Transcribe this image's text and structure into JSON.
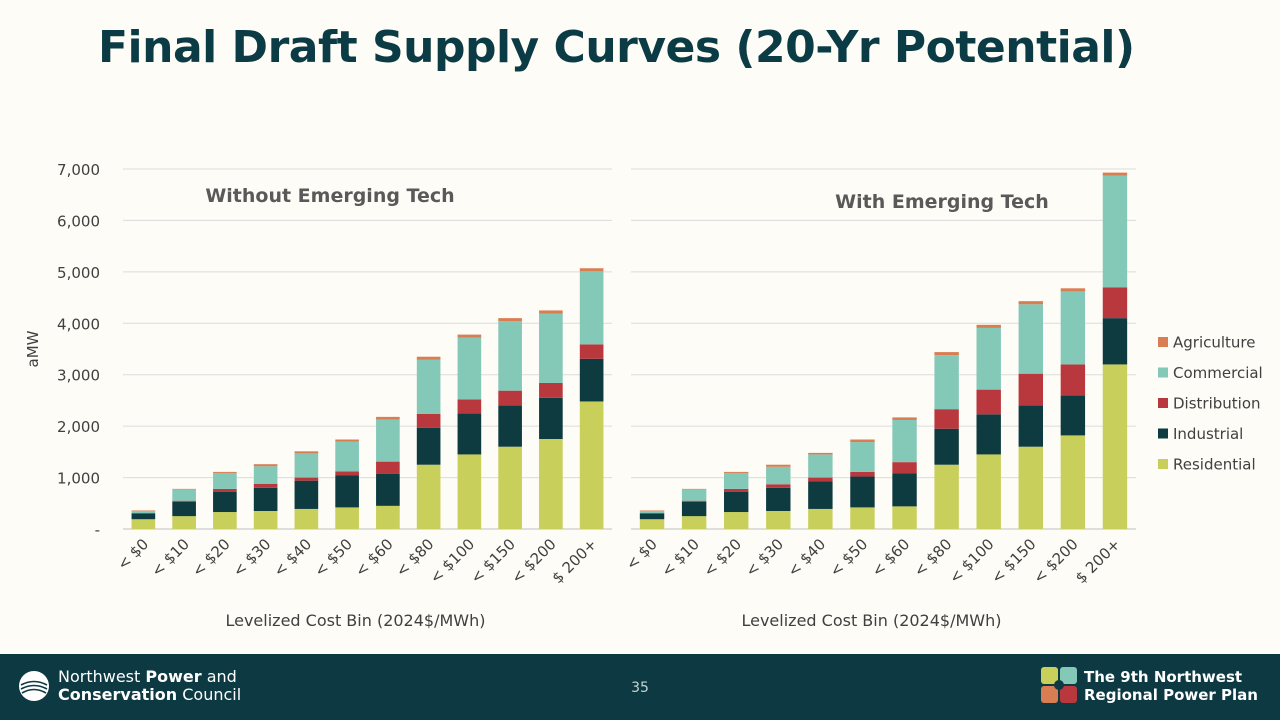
{
  "slide": {
    "title": "Final Draft Supply Curves (20-Yr Potential)",
    "page_number": "35",
    "org_name_line1_normal": "Northwest ",
    "org_name_line1_bold": "Power",
    "org_name_line1_end": " and",
    "org_name_line2_bold": "Conservation",
    "org_name_line2_end": " Council",
    "plan_name_line1": "The 9th Northwest",
    "plan_name_line2": "Regional Power Plan"
  },
  "colors": {
    "Residential": "#c8cf5a",
    "Industrial": "#0e3b40",
    "Distribution": "#b9383d",
    "Commercial": "#84c8b8",
    "Agriculture": "#d97d52",
    "title": "#0b3b44",
    "footer": "#0d3a42"
  },
  "chart_data": [
    {
      "type": "bar",
      "stacked": true,
      "title": "Without Emerging Tech",
      "ylabel": "aMW",
      "xlabel": "Levelized Cost Bin (2024$/MWh)",
      "ylim": [
        0,
        7000
      ],
      "yticks": [
        0,
        1000,
        2000,
        3000,
        4000,
        5000,
        6000,
        7000
      ],
      "ytick_labels": [
        "-",
        "1,000",
        "2,000",
        "3,000",
        "4,000",
        "5,000",
        "6,000",
        "7,000"
      ],
      "grid": true,
      "categories": [
        "< $0",
        "< $10",
        "< $20",
        "< $30",
        "< $40",
        "< $50",
        "< $60",
        "< $80",
        "< $100",
        "< $150",
        "< $200",
        "$ 200+"
      ],
      "series": [
        {
          "name": "Residential",
          "values": [
            190,
            250,
            330,
            350,
            390,
            420,
            450,
            1250,
            1450,
            1600,
            1750,
            2480
          ]
        },
        {
          "name": "Industrial",
          "values": [
            110,
            280,
            390,
            450,
            550,
            620,
            620,
            720,
            800,
            800,
            800,
            830
          ]
        },
        {
          "name": "Distribution",
          "values": [
            10,
            20,
            60,
            80,
            60,
            80,
            240,
            270,
            270,
            290,
            290,
            280
          ]
        },
        {
          "name": "Commercial",
          "values": [
            40,
            220,
            310,
            340,
            470,
            580,
            820,
            1050,
            1200,
            1350,
            1350,
            1420
          ]
        },
        {
          "name": "Agriculture",
          "values": [
            10,
            10,
            20,
            40,
            40,
            40,
            50,
            60,
            60,
            60,
            60,
            60
          ]
        }
      ]
    },
    {
      "type": "bar",
      "stacked": true,
      "title": "With Emerging Tech",
      "xlabel": "Levelized Cost Bin (2024$/MWh)",
      "ylim": [
        0,
        7000
      ],
      "grid": true,
      "categories": [
        "< $0",
        "< $10",
        "< $20",
        "< $30",
        "< $40",
        "< $50",
        "< $60",
        "< $80",
        "< $100",
        "< $150",
        "< $200",
        "$ 200+"
      ],
      "series": [
        {
          "name": "Residential",
          "values": [
            190,
            250,
            330,
            350,
            390,
            420,
            440,
            1250,
            1450,
            1600,
            1820,
            3200
          ]
        },
        {
          "name": "Industrial",
          "values": [
            110,
            280,
            390,
            450,
            540,
            600,
            640,
            700,
            780,
            800,
            780,
            900
          ]
        },
        {
          "name": "Distribution",
          "values": [
            10,
            20,
            60,
            70,
            70,
            90,
            220,
            380,
            480,
            620,
            600,
            600
          ]
        },
        {
          "name": "Commercial",
          "values": [
            40,
            220,
            310,
            340,
            450,
            580,
            820,
            1050,
            1200,
            1350,
            1420,
            2170
          ]
        },
        {
          "name": "Agriculture",
          "values": [
            10,
            10,
            20,
            40,
            30,
            50,
            50,
            60,
            60,
            60,
            60,
            60
          ]
        }
      ]
    }
  ],
  "legend": {
    "placement": "right",
    "items": [
      "Agriculture",
      "Commercial",
      "Distribution",
      "Industrial",
      "Residential"
    ]
  }
}
